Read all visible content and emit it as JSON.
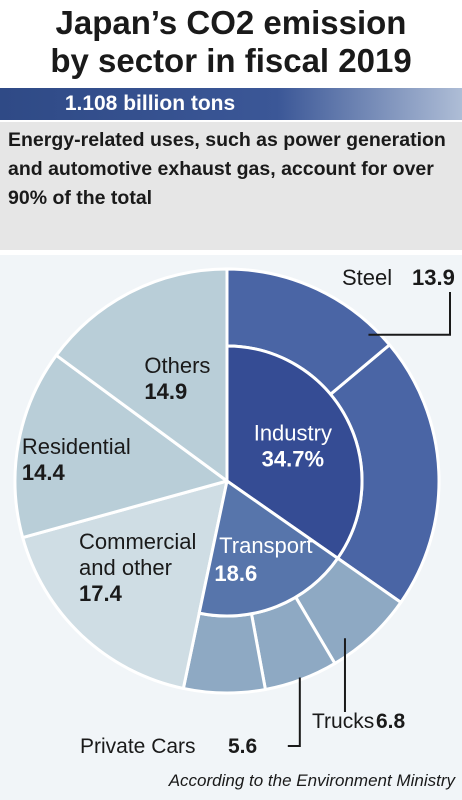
{
  "title_line1": "Japan’s CO2 emission",
  "title_line2": "by sector in fiscal 2019",
  "total": "1.108 billion tons",
  "description": "Energy-related uses, such as power generation and automotive exhaust gas, account for over 90% of the total",
  "source": "According to the Environment Ministry",
  "colors": {
    "industry": "#354c94",
    "industry_sub": "#4a65a5",
    "transport": "#5775ab",
    "transport_sub": "#8ea9c3",
    "others": "#b9ced8",
    "commercial": "#cfdde4"
  },
  "chart_data": {
    "type": "pie",
    "title": "Japan’s CO2 emission by sector in fiscal 2019",
    "total": "1.108 billion tons",
    "unit": "%",
    "sectors": [
      {
        "name": "Industry",
        "value": 34.7,
        "label_value": "34.7%",
        "sub": [
          {
            "name": "Steel",
            "value": 13.9,
            "label_value": "13.9"
          }
        ]
      },
      {
        "name": "Transport",
        "value": 18.6,
        "label_value": "18.6",
        "sub": [
          {
            "name": "Trucks",
            "value": 6.8,
            "label_value": "6.8"
          },
          {
            "name": "Private Cars",
            "value": 5.6,
            "label_value": "5.6"
          }
        ]
      },
      {
        "name": "Commercial and other",
        "value": 17.4,
        "label_value": "17.4"
      },
      {
        "name": "Residential",
        "value": 14.4,
        "label_value": "14.4"
      },
      {
        "name": "Others",
        "value": 14.9,
        "label_value": "14.9"
      }
    ]
  }
}
